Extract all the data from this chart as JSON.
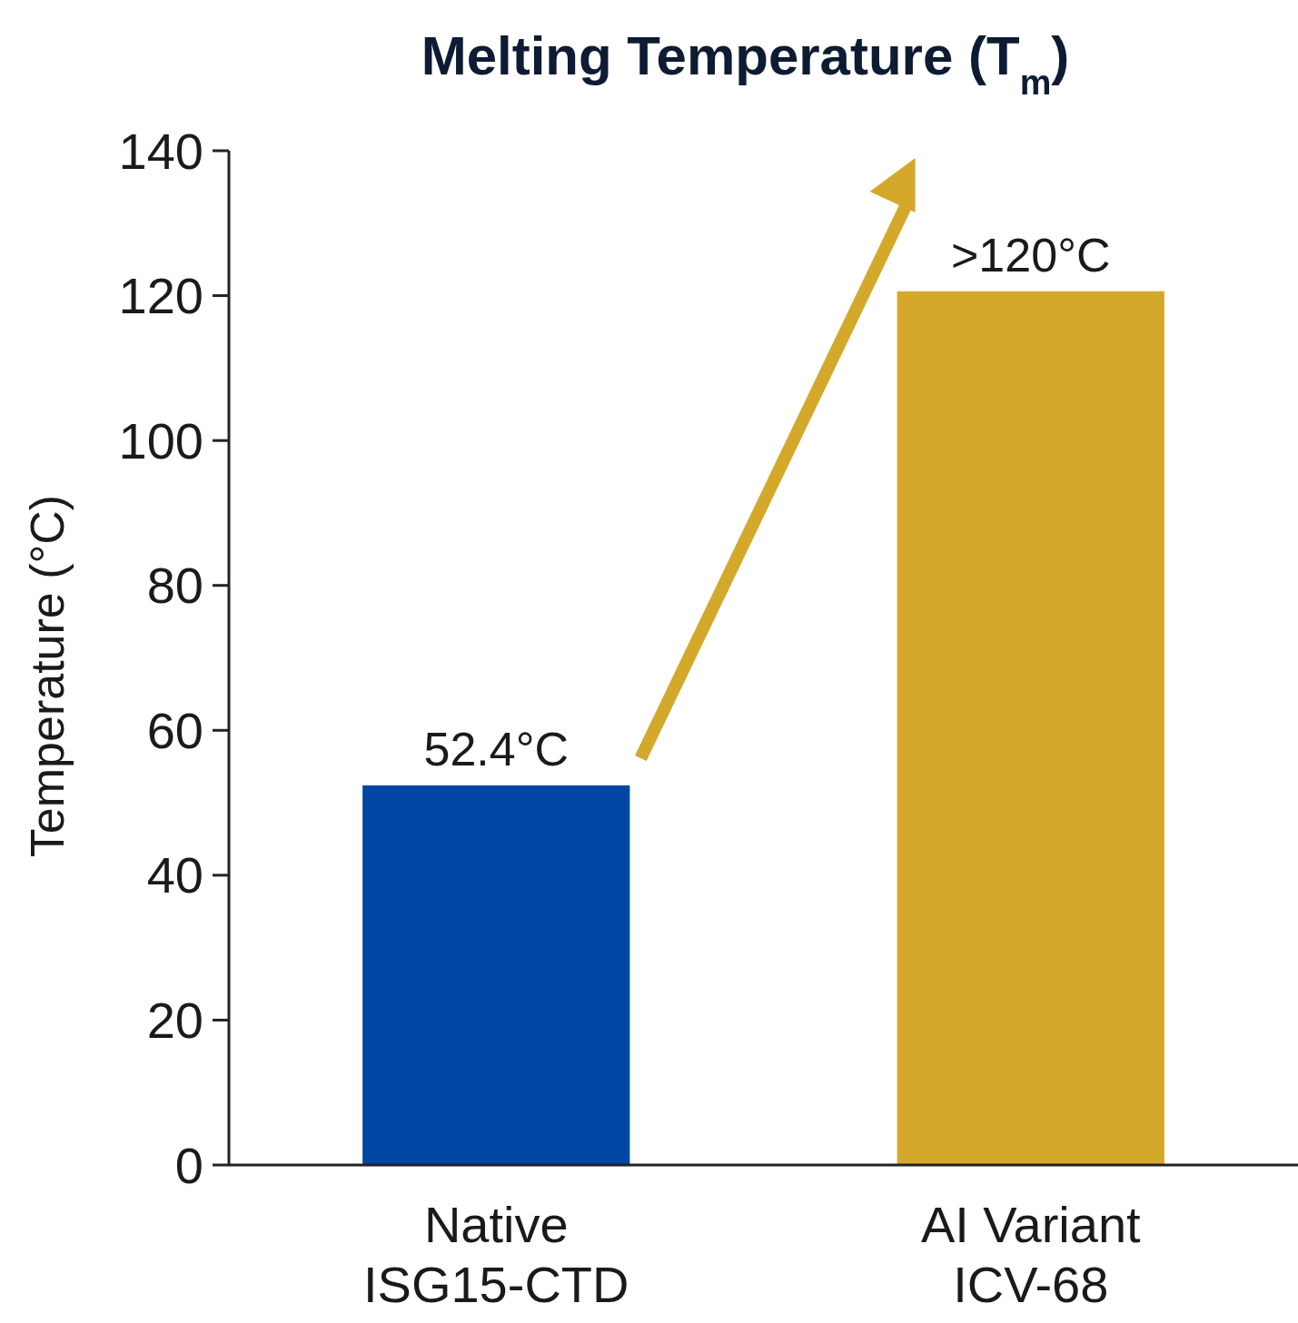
{
  "chart_data": {
    "type": "bar",
    "title": "Melting Temperature (T$_{m}$)",
    "ylabel": "Temperature (°C)",
    "categories": [
      "Native\nISG15-CTD",
      "AI Variant\nICV-68"
    ],
    "values": [
      52.4,
      120.6
    ],
    "colors": [
      "#0047a3",
      "#d4a82a"
    ],
    "value_labels": [
      "52.4°C",
      ">120°C"
    ],
    "ylim": [
      0,
      140
    ],
    "yticks": [
      0,
      20,
      40,
      60,
      80,
      100,
      120,
      140
    ],
    "grid": false
  }
}
